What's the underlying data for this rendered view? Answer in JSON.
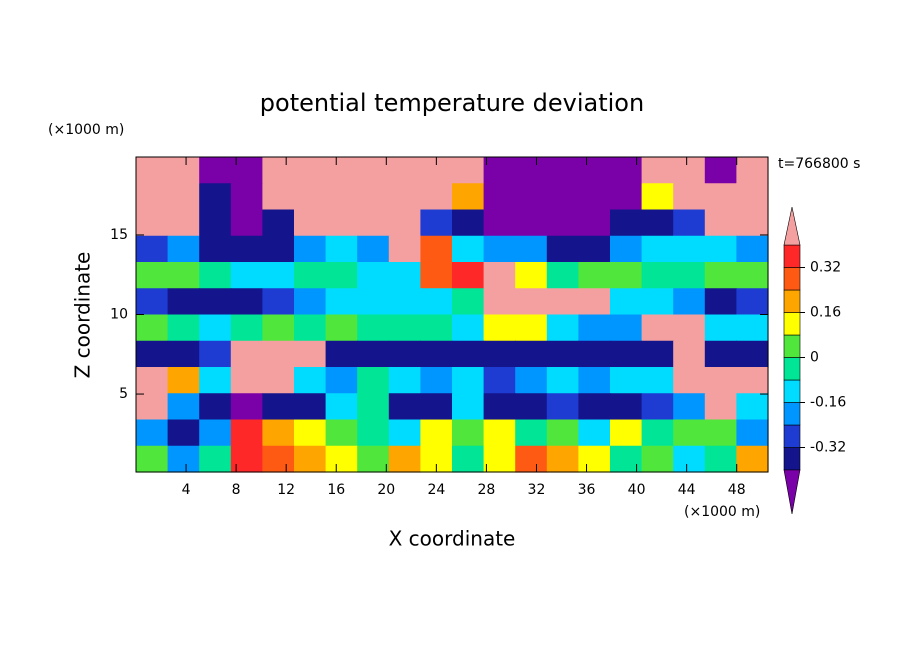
{
  "chart_data": {
    "type": "contour",
    "title": "potential temperature deviation",
    "x_label": "X coordinate",
    "y_label": "Z coordinate",
    "x_unit": "(×1000 m)",
    "y_unit": "(×1000 m)",
    "annotation": "t=766800 s",
    "xlim": [
      0,
      50.5
    ],
    "ylim": [
      0.1,
      19.9
    ],
    "xticks": [
      4,
      8,
      12,
      16,
      20,
      24,
      28,
      32,
      36,
      40,
      44,
      48
    ],
    "yticks": [
      5,
      10,
      15
    ],
    "levels": [
      -0.4,
      -0.32,
      -0.24,
      -0.16,
      -0.08,
      0,
      0.08,
      0.16,
      0.24,
      0.32,
      0.4
    ],
    "colors": [
      "#7a00a8",
      "#14148c",
      "#1e3cd2",
      "#0096ff",
      "#00dcff",
      "#00e696",
      "#50e63c",
      "#ffff00",
      "#ffa500",
      "#ff5a14",
      "#ff2828",
      "#f4a0a0"
    ],
    "colorbar_ticks": [
      -0.32,
      -0.16,
      0,
      0.16,
      0.32
    ],
    "z": [
      [
        0.5,
        0.5,
        -0.5,
        -0.5,
        0.5,
        0.5,
        0.5,
        0.5,
        0.5,
        0.5,
        0.5,
        -0.5,
        -0.5,
        -0.5,
        -0.5,
        -0.5,
        0.5,
        0.5,
        -0.5,
        0.5
      ],
      [
        0.5,
        0.5,
        -0.36,
        -0.5,
        0.5,
        0.5,
        0.5,
        0.5,
        0.5,
        0.5,
        0.2,
        -0.5,
        -0.5,
        -0.5,
        -0.5,
        -0.5,
        0.12,
        0.5,
        0.5,
        0.5
      ],
      [
        0.5,
        0.5,
        -0.36,
        -0.5,
        -0.36,
        0.5,
        0.5,
        0.5,
        0.5,
        -0.28,
        -0.36,
        -0.5,
        -0.5,
        -0.5,
        -0.5,
        -0.36,
        -0.36,
        -0.28,
        0.5,
        0.5
      ],
      [
        -0.28,
        -0.2,
        -0.36,
        -0.36,
        -0.36,
        -0.2,
        -0.12,
        -0.2,
        0.5,
        0.28,
        -0.12,
        -0.2,
        -0.2,
        -0.36,
        -0.36,
        -0.2,
        -0.12,
        -0.12,
        -0.12,
        -0.2
      ],
      [
        0.04,
        0.04,
        -0.04,
        -0.12,
        -0.12,
        -0.04,
        -0.04,
        -0.12,
        -0.12,
        0.28,
        0.36,
        0.5,
        0.12,
        -0.04,
        0.04,
        0.04,
        -0.04,
        -0.04,
        0.04,
        0.04
      ],
      [
        -0.28,
        -0.36,
        -0.36,
        -0.36,
        -0.28,
        -0.2,
        -0.12,
        -0.12,
        -0.12,
        -0.12,
        -0.04,
        0.5,
        0.5,
        0.5,
        0.5,
        -0.12,
        -0.12,
        -0.2,
        -0.36,
        -0.28
      ],
      [
        0.04,
        -0.04,
        -0.12,
        -0.04,
        0.04,
        -0.04,
        0.04,
        -0.04,
        -0.04,
        -0.04,
        -0.12,
        0.12,
        0.12,
        -0.12,
        -0.2,
        -0.2,
        0.5,
        0.5,
        -0.12,
        -0.12
      ],
      [
        -0.36,
        -0.36,
        -0.28,
        0.5,
        0.5,
        0.5,
        -0.36,
        -0.36,
        -0.36,
        -0.36,
        -0.36,
        -0.36,
        -0.36,
        -0.36,
        -0.36,
        -0.36,
        -0.36,
        0.5,
        -0.36,
        -0.36
      ],
      [
        0.5,
        0.2,
        -0.12,
        0.5,
        0.5,
        -0.12,
        -0.2,
        -0.04,
        -0.12,
        -0.2,
        -0.12,
        -0.28,
        -0.2,
        -0.12,
        -0.2,
        -0.12,
        -0.12,
        0.5,
        0.5,
        0.5
      ],
      [
        0.5,
        -0.2,
        -0.36,
        -0.5,
        -0.36,
        -0.36,
        -0.12,
        -0.04,
        -0.36,
        -0.36,
        -0.12,
        -0.36,
        -0.36,
        -0.28,
        -0.36,
        -0.36,
        -0.28,
        -0.2,
        0.5,
        -0.12
      ],
      [
        -0.2,
        -0.36,
        -0.2,
        0.36,
        0.2,
        0.12,
        0.04,
        -0.04,
        -0.12,
        0.12,
        0.04,
        0.12,
        -0.04,
        0.04,
        -0.12,
        0.12,
        -0.04,
        0.04,
        0.04,
        -0.2
      ],
      [
        0.04,
        -0.2,
        -0.04,
        0.36,
        0.28,
        0.2,
        0.12,
        0.04,
        0.2,
        0.12,
        -0.04,
        0.12,
        0.28,
        0.2,
        0.12,
        -0.04,
        0.04,
        -0.12,
        -0.04,
        0.2
      ]
    ]
  }
}
